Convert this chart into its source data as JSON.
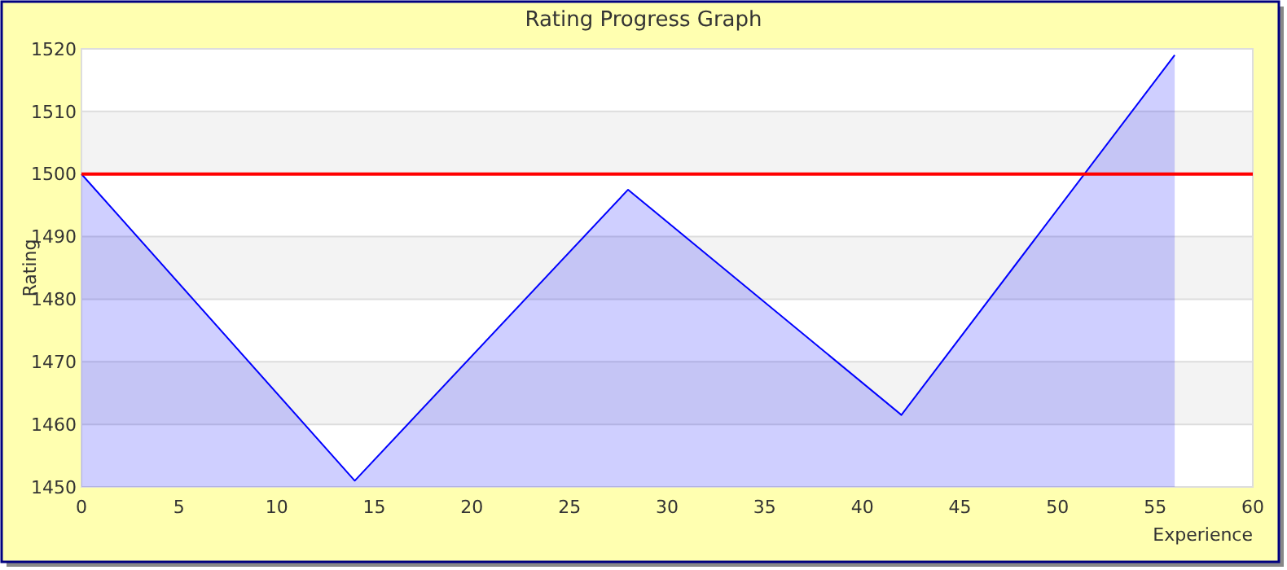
{
  "chart_data": {
    "type": "area",
    "title": "Rating Progress Graph",
    "xlabel": "Experience",
    "ylabel": "Rating",
    "x": [
      0,
      14,
      28,
      42,
      56
    ],
    "series": [
      {
        "color": "#0000ff",
        "values": [
          1500,
          1451,
          1497.5,
          1461.5,
          1519
        ]
      }
    ],
    "xlim": [
      0,
      60
    ],
    "xticks": [
      0,
      5,
      10,
      15,
      20,
      25,
      30,
      35,
      40,
      45,
      50,
      55,
      60
    ],
    "ylim": [
      1450,
      1520
    ],
    "yticks": [
      1450,
      1460,
      1470,
      1480,
      1490,
      1500,
      1510,
      1520
    ],
    "grid": "y",
    "ref_lines": [
      {
        "axis": "y",
        "value": 1500,
        "color": "#ff0000"
      }
    ]
  }
}
